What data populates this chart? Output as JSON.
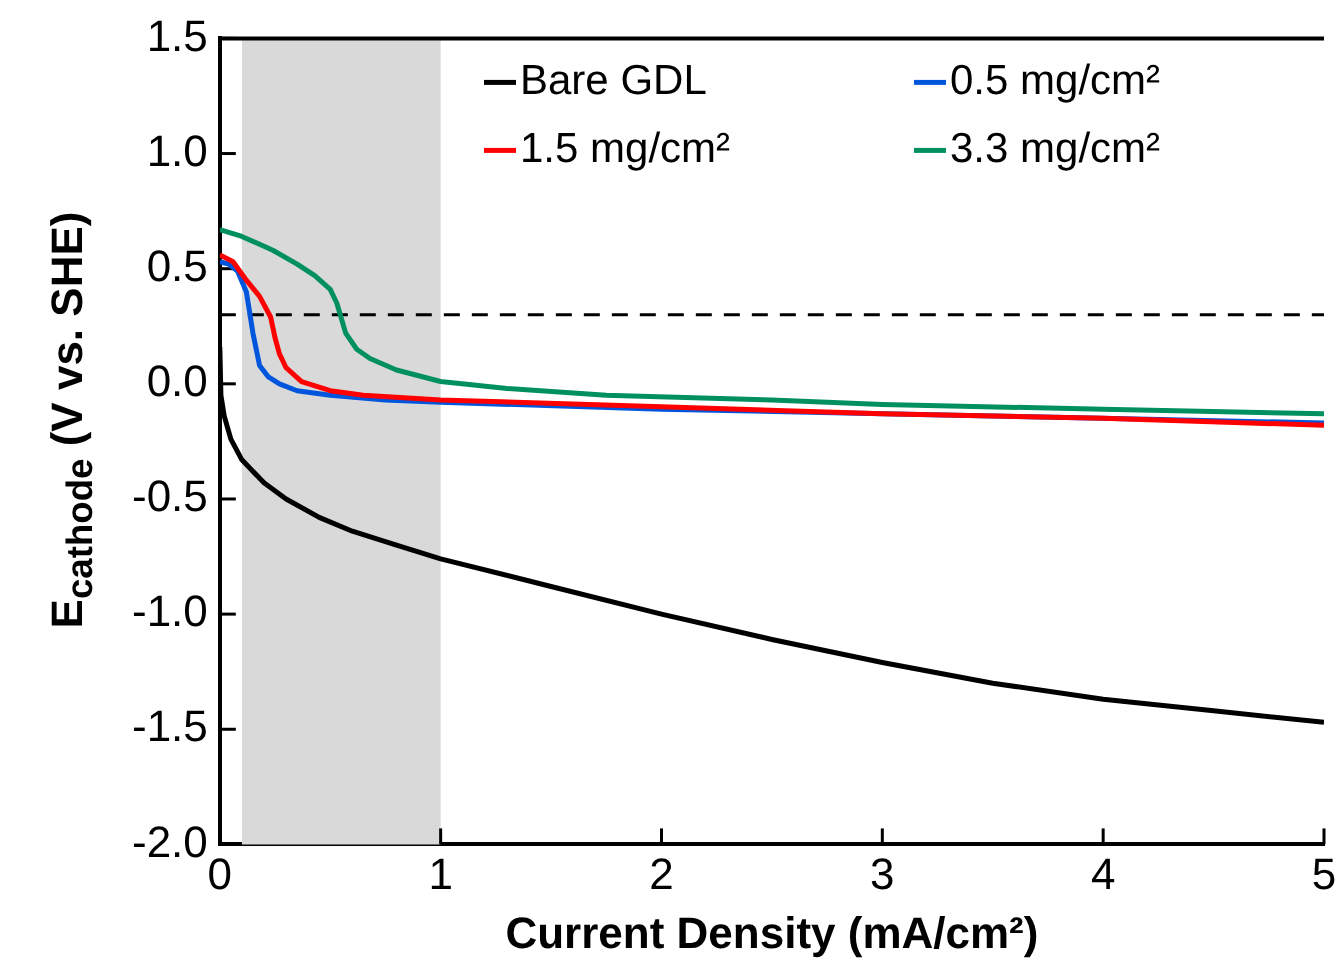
{
  "chart_data": {
    "type": "line",
    "xlabel": "Current Density (mA/cm²)",
    "ylabel": "E$_{cathode}$ (V vs. SHE)",
    "xlim": [
      0,
      5
    ],
    "xticks": [
      0,
      1,
      2,
      3,
      4,
      5
    ],
    "ylim": [
      -2,
      1.5
    ],
    "yticks": [
      {
        "value": 1.5,
        "label": "1.5"
      },
      {
        "value": 1,
        "label": "1.0"
      },
      {
        "value": 0.5,
        "label": "0.5"
      },
      {
        "value": 0,
        "label": "0.0"
      },
      {
        "value": -0.5,
        "label": "-0.5"
      },
      {
        "value": -1,
        "label": "-1.0"
      },
      {
        "value": -1.5,
        "label": "-1.5"
      },
      {
        "value": -2,
        "label": "-2.0"
      }
    ],
    "grid": false,
    "legend": "top right",
    "marker": "none",
    "line_style": "solid",
    "bands": [
      {
        "axis": "x",
        "from": 0.1,
        "to": 1,
        "color": "#d9d9d9"
      }
    ],
    "ref_lines": [
      {
        "axis": "y",
        "value": 0.3,
        "color": "#000000",
        "line_style": "dashed"
      }
    ],
    "series": [
      {
        "name": "Bare GDL",
        "color": "#000000",
        "x": [
          0,
          0.005,
          0.02,
          0.05,
          0.1,
          0.2,
          0.3,
          0.45,
          0.6,
          0.8,
          1,
          1.5,
          2,
          2.5,
          3,
          3.5,
          4,
          4.5,
          5
        ],
        "values": [
          0.16,
          -0.05,
          -0.14,
          -0.24,
          -0.33,
          -0.43,
          -0.5,
          -0.58,
          -0.64,
          -0.7,
          -0.76,
          -0.88,
          -1,
          -1.11,
          -1.21,
          -1.3,
          -1.37,
          -1.42,
          -1.47
        ]
      },
      {
        "name": "0.5 mg/cm²",
        "color": "#0055dd",
        "x": [
          0,
          0.04,
          0.08,
          0.12,
          0.15,
          0.18,
          0.22,
          0.27,
          0.35,
          0.5,
          0.75,
          1,
          2,
          3,
          4,
          5
        ],
        "values": [
          0.53,
          0.52,
          0.49,
          0.4,
          0.22,
          0.08,
          0.03,
          0,
          -0.03,
          -0.05,
          -0.07,
          -0.08,
          -0.11,
          -0.13,
          -0.15,
          -0.17
        ]
      },
      {
        "name": "1.5 mg/cm²",
        "color": "#ff0000",
        "x": [
          0,
          0.06,
          0.12,
          0.18,
          0.23,
          0.25,
          0.27,
          0.3,
          0.37,
          0.5,
          0.65,
          1,
          2,
          3,
          4,
          5
        ],
        "values": [
          0.56,
          0.53,
          0.45,
          0.38,
          0.29,
          0.2,
          0.13,
          0.07,
          0.01,
          -0.03,
          -0.05,
          -0.07,
          -0.1,
          -0.13,
          -0.15,
          -0.18
        ]
      },
      {
        "name": "3.3 mg/cm²",
        "color": "#009060",
        "x": [
          0,
          0.1,
          0.24,
          0.35,
          0.43,
          0.5,
          0.53,
          0.57,
          0.62,
          0.68,
          0.8,
          1,
          1.3,
          1.75,
          2.5,
          3,
          4,
          5
        ],
        "values": [
          0.67,
          0.64,
          0.58,
          0.52,
          0.47,
          0.41,
          0.35,
          0.22,
          0.15,
          0.11,
          0.06,
          0.01,
          -0.02,
          -0.05,
          -0.07,
          -0.09,
          -0.11,
          -0.13
        ]
      }
    ]
  }
}
